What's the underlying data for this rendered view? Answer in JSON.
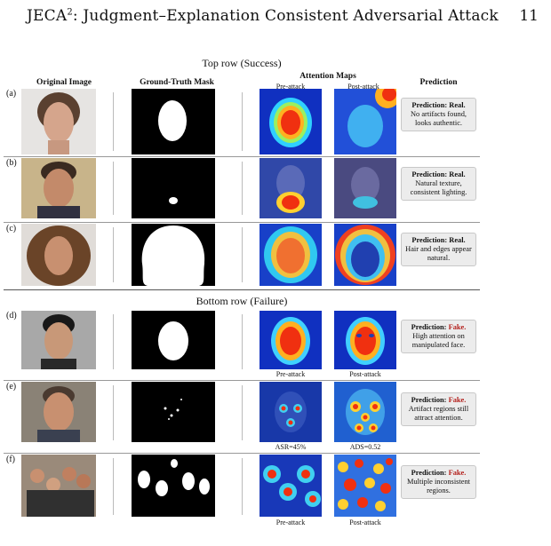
{
  "header": {
    "title": "JECA",
    "title_sup": "2",
    "title_rest": ": Judgment–Explanation Consistent Adversarial Attack",
    "page_number": "11"
  },
  "figure": {
    "top_section": "Top row (Success)",
    "bottom_section": "Bottom row (Failure)",
    "columns": {
      "original": "Original Image",
      "mask": "Ground-Truth Mask",
      "attention": "Attention Maps",
      "prediction": "Prediction"
    },
    "attention_sub": {
      "pre": "Pre-attack",
      "post": "Post-attack"
    },
    "rows": [
      {
        "label": "(a)",
        "pred_head": "Prediction: ",
        "verdict": "Real.",
        "text": "No artifacts found, looks authentic."
      },
      {
        "label": "(b)",
        "pred_head": "Prediction: ",
        "verdict": "Real.",
        "text": "Natural texture, consistent lighting."
      },
      {
        "label": "(c)",
        "pred_head": "Prediction: ",
        "verdict": "Real.",
        "text": "Hair and edges appear natural."
      },
      {
        "label": "(d)",
        "pred_head": "Prediction: ",
        "verdict": "Fake.",
        "text": "High attention on manipulated face.",
        "below_pre": "Pre-attack",
        "below_post": "Post-attack"
      },
      {
        "label": "(e)",
        "pred_head": "Prediction: ",
        "verdict": "Fake.",
        "text": "Artifact regions still attract attention.",
        "below_pre": "ASR=45%",
        "below_post": "ADS=0.52"
      },
      {
        "label": "(f)",
        "pred_head": "Prediction: ",
        "verdict": "Fake.",
        "text": "Multiple inconsistent regions.",
        "below_pre": "Pre-attack",
        "below_post": "Post-attack"
      }
    ]
  }
}
